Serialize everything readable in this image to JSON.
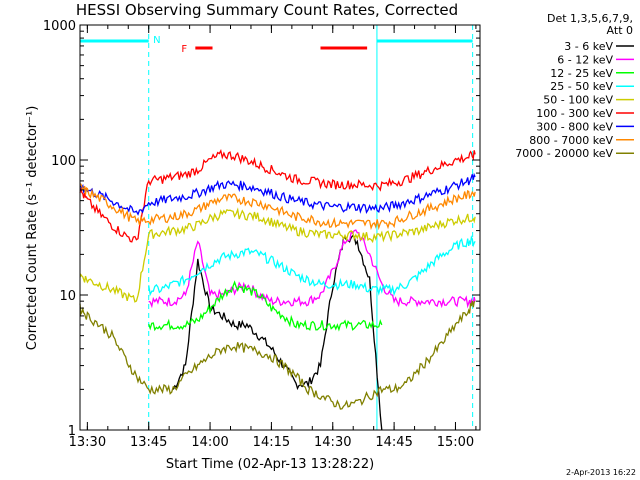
{
  "chart_data": {
    "type": "line",
    "title": "HESSI Observing Summary Count Rates, Corrected",
    "xlabel": "Start Time (02-Apr-13 13:28:22)",
    "ylabel": "Corrected Count Rate (s⁻¹ detector⁻¹)",
    "yscale": "log",
    "ylim": [
      1,
      1000
    ],
    "xlim_minutes": [
      13.47,
      15.1
    ],
    "xticks": [
      "13:30",
      "13:45",
      "14:00",
      "14:15",
      "14:30",
      "14:45",
      "15:00"
    ],
    "xtick_values": [
      13.5,
      13.75,
      14.0,
      14.25,
      14.5,
      14.75,
      15.0
    ],
    "yticks": [
      "1",
      "10",
      "100",
      "1000"
    ],
    "ytick_values": [
      1,
      10,
      100,
      1000
    ],
    "legend_header": [
      "Det 1,3,5,6,7,9,",
      "Att 0"
    ],
    "legend_position": "right",
    "annotations": {
      "night_label": "N",
      "flare_label": "F"
    },
    "timestamp": "2-Apr-2013 16:22",
    "series": [
      {
        "name": "3 - 6 keV",
        "color": "#000000",
        "x": [
          13.85,
          13.9,
          13.95,
          14.0,
          14.05,
          14.1,
          14.15,
          14.2,
          14.25,
          14.3,
          14.35,
          14.4,
          14.45,
          14.5,
          14.55,
          14.6,
          14.65,
          14.7
        ],
        "y": [
          2,
          3,
          18,
          8,
          7,
          6,
          6,
          5,
          4,
          3,
          2.2,
          2.2,
          3,
          12,
          28,
          25,
          13,
          1
        ]
      },
      {
        "name": "6 - 12 keV",
        "color": "#ff00ff",
        "x": [
          13.75,
          13.8,
          13.85,
          13.9,
          13.95,
          14.0,
          14.05,
          14.1,
          14.15,
          14.2,
          14.25,
          14.3,
          14.35,
          14.4,
          14.45,
          14.5,
          14.55,
          14.6,
          14.65,
          14.7,
          14.75,
          14.8,
          14.85,
          14.9,
          14.95,
          15.0,
          15.05,
          15.08
        ],
        "y": [
          9,
          9,
          9,
          10,
          25,
          10,
          10,
          11,
          12,
          10,
          9,
          9,
          9,
          9,
          10,
          15,
          25,
          30,
          20,
          12,
          9,
          9,
          9,
          9,
          9,
          9,
          9,
          9
        ]
      },
      {
        "name": "12 - 25 keV",
        "color": "#00ff00",
        "x": [
          13.75,
          13.8,
          13.85,
          13.9,
          13.95,
          14.0,
          14.05,
          14.1,
          14.15,
          14.2,
          14.25,
          14.3,
          14.35,
          14.4,
          14.45,
          14.5,
          14.55,
          14.6,
          14.65,
          14.7
        ],
        "y": [
          6,
          6,
          6,
          6,
          6.5,
          8,
          10,
          12,
          11,
          10,
          8,
          7,
          6,
          6,
          6,
          6,
          6,
          6,
          6,
          6
        ]
      },
      {
        "name": "25 - 50 keV",
        "color": "#00ffff",
        "x": [
          13.75,
          13.8,
          13.85,
          13.9,
          13.95,
          14.0,
          14.05,
          14.1,
          14.15,
          14.2,
          14.25,
          14.3,
          14.35,
          14.4,
          14.45,
          14.5,
          14.55,
          14.6,
          14.65,
          14.7,
          14.75,
          14.8,
          14.85,
          14.9,
          14.95,
          15.0,
          15.05,
          15.08
        ],
        "y": [
          11,
          11,
          12,
          13,
          15,
          17,
          19,
          20,
          21,
          20,
          18,
          16,
          14,
          13,
          12,
          12,
          12,
          12,
          11,
          11,
          11,
          12,
          14,
          17,
          20,
          23,
          25,
          25
        ]
      },
      {
        "name": "50 - 100 keV",
        "color": "#cccc00",
        "x": [
          13.47,
          13.5,
          13.55,
          13.6,
          13.65,
          13.7,
          13.75,
          13.8,
          13.85,
          13.9,
          13.95,
          14.0,
          14.05,
          14.1,
          14.15,
          14.2,
          14.25,
          14.3,
          14.35,
          14.4,
          14.45,
          14.5,
          14.55,
          14.6,
          14.65,
          14.7,
          14.75,
          14.8,
          14.85,
          14.9,
          14.95,
          15.0,
          15.05,
          15.08
        ],
        "y": [
          14,
          13,
          12,
          11,
          10,
          9,
          28,
          29,
          30,
          31,
          33,
          37,
          40,
          40,
          39,
          38,
          35,
          32,
          30,
          29,
          28,
          28,
          28,
          28,
          27,
          27,
          28,
          29,
          30,
          32,
          34,
          36,
          37,
          38
        ]
      },
      {
        "name": "100 - 300 keV",
        "color": "#ff0000",
        "x": [
          13.47,
          13.5,
          13.55,
          13.6,
          13.65,
          13.7,
          13.75,
          13.8,
          13.85,
          13.9,
          13.95,
          14.0,
          14.05,
          14.1,
          14.15,
          14.2,
          14.25,
          14.3,
          14.35,
          14.4,
          14.45,
          14.5,
          14.55,
          14.6,
          14.65,
          14.7,
          14.75,
          14.8,
          14.85,
          14.9,
          14.95,
          15.0,
          15.05,
          15.08
        ],
        "y": [
          60,
          50,
          40,
          33,
          28,
          25,
          70,
          72,
          75,
          78,
          85,
          100,
          110,
          108,
          100,
          92,
          85,
          78,
          72,
          70,
          68,
          66,
          66,
          66,
          65,
          65,
          68,
          72,
          78,
          85,
          92,
          100,
          105,
          110
        ]
      },
      {
        "name": "300 - 800 keV",
        "color": "#0000ff",
        "x": [
          13.47,
          13.5,
          13.55,
          13.6,
          13.65,
          13.7,
          13.75,
          13.8,
          13.85,
          13.9,
          13.95,
          14.0,
          14.05,
          14.1,
          14.15,
          14.2,
          14.25,
          14.3,
          14.35,
          14.4,
          14.45,
          14.5,
          14.55,
          14.6,
          14.65,
          14.7,
          14.75,
          14.8,
          14.85,
          14.9,
          14.95,
          15.0,
          15.05,
          15.08
        ],
        "y": [
          65,
          60,
          55,
          50,
          45,
          40,
          48,
          50,
          52,
          54,
          57,
          62,
          66,
          66,
          64,
          61,
          57,
          53,
          50,
          48,
          46,
          45,
          45,
          45,
          44,
          44,
          46,
          49,
          52,
          56,
          60,
          65,
          70,
          75
        ]
      },
      {
        "name": "800 - 7000 keV",
        "color": "#ff8800",
        "x": [
          13.47,
          13.5,
          13.55,
          13.6,
          13.65,
          13.7,
          13.75,
          13.8,
          13.85,
          13.9,
          13.95,
          14.0,
          14.05,
          14.1,
          14.15,
          14.2,
          14.25,
          14.3,
          14.35,
          14.4,
          14.45,
          14.5,
          14.55,
          14.6,
          14.65,
          14.7,
          14.75,
          14.8,
          14.85,
          14.9,
          14.95,
          15.0,
          15.05,
          15.08
        ],
        "y": [
          63,
          58,
          52,
          46,
          40,
          35,
          36,
          37,
          38,
          40,
          43,
          48,
          52,
          52,
          50,
          48,
          45,
          41,
          38,
          37,
          35,
          34,
          34,
          34,
          34,
          34,
          35,
          38,
          41,
          44,
          48,
          52,
          55,
          58
        ]
      },
      {
        "name": "7000 - 20000 keV",
        "color": "#808000",
        "x": [
          13.47,
          13.5,
          13.55,
          13.6,
          13.65,
          13.7,
          13.75,
          13.8,
          13.85,
          13.9,
          13.95,
          14.0,
          14.05,
          14.1,
          14.15,
          14.2,
          14.25,
          14.3,
          14.35,
          14.4,
          14.45,
          14.5,
          14.55,
          14.6,
          14.65,
          14.7,
          14.75,
          14.8,
          14.85,
          14.9,
          14.95,
          15.0,
          15.05,
          15.08
        ],
        "y": [
          8,
          7,
          6,
          5,
          3.5,
          2.5,
          2,
          2,
          2,
          2.5,
          3,
          3.5,
          4,
          4.2,
          4,
          3.8,
          3.5,
          3,
          2.5,
          2,
          1.8,
          1.6,
          1.5,
          1.6,
          1.8,
          2,
          2,
          2.2,
          2.8,
          3.5,
          4.5,
          6,
          7.5,
          9
        ]
      }
    ]
  }
}
